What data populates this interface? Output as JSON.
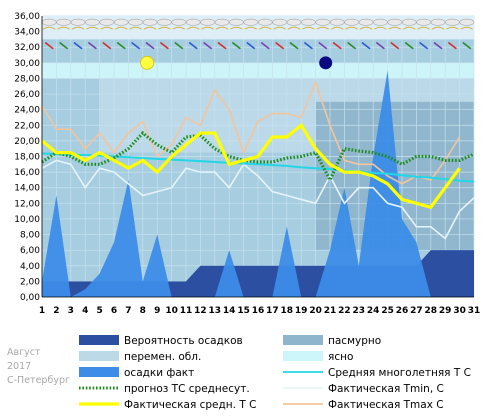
{
  "caption": {
    "month": "Август",
    "year": "2017",
    "city": "С-Петербург"
  },
  "colors": {
    "panel_bg": "#a6cde0",
    "clear": "#cdf6fa",
    "partly": "#bcd9e8",
    "overcast": "#8eb5cc",
    "precip_prob": "#2c4fa2",
    "precip_fact": "#3c8ce8",
    "forecast": "#1e8c1e",
    "norm": "#22d6e6",
    "tmin": "#e6f4fa",
    "tavg": "#ffff00",
    "tmax": "#f4c49c"
  },
  "legend": [
    {
      "key": "precip_prob",
      "label": "Вероятность осадков",
      "swatch": "box-dark"
    },
    {
      "key": "overcast",
      "label": "пасмурно",
      "swatch": "box-grey"
    },
    {
      "key": "partly",
      "label": "перемен. обл.",
      "swatch": "box-light"
    },
    {
      "key": "clear",
      "label": "ясно",
      "swatch": "box-clear"
    },
    {
      "key": "precip_fact",
      "label": "осадки факт",
      "swatch": "box-blue"
    },
    {
      "key": "norm",
      "label": "Средняя многолетняя Т С",
      "swatch": "line-cyan"
    },
    {
      "key": "forecast",
      "label": "прогноз ТС среднесут.",
      "swatch": "line-green-dotted"
    },
    {
      "key": "tmin",
      "label": "Фактическая Tmin, С",
      "swatch": "line-white"
    },
    {
      "key": "tavg",
      "label": "Фактическая средн. Т С",
      "swatch": "line-yellow"
    },
    {
      "key": "tmax",
      "label": "Фактическая Tmax С",
      "swatch": "line-peach"
    }
  ],
  "chart_data": {
    "type": "line",
    "x": [
      1,
      2,
      3,
      4,
      5,
      6,
      7,
      8,
      9,
      10,
      11,
      12,
      13,
      14,
      15,
      16,
      17,
      18,
      19,
      20,
      21,
      22,
      23,
      24,
      25,
      26,
      27,
      28,
      29,
      30,
      31
    ],
    "ylim": [
      0,
      36
    ],
    "yticks": [
      "0,00",
      "2,00",
      "4,00",
      "6,00",
      "8,00",
      "10,00",
      "12,00",
      "14,00",
      "16,00",
      "18,00",
      "20,00",
      "22,00",
      "24,00",
      "26,00",
      "28,00",
      "30,00",
      "32,00",
      "34,00",
      "36,00"
    ],
    "xticks": [
      "1",
      "2",
      "3",
      "4",
      "5",
      "6",
      "7",
      "8",
      "9",
      "10",
      "11",
      "12",
      "13",
      "14",
      "15",
      "16",
      "17",
      "18",
      "19",
      "20",
      "21",
      "22",
      "23",
      "24",
      "25",
      "26",
      "27",
      "28",
      "29",
      "30",
      "31"
    ],
    "grid": true,
    "series": [
      {
        "key": "norm",
        "name": "Средняя многолетняя Т С",
        "values": [
          18.4,
          18.3,
          18.2,
          18.2,
          18.1,
          18.0,
          17.9,
          17.8,
          17.7,
          17.6,
          17.5,
          17.4,
          17.3,
          17.2,
          17.1,
          17.0,
          16.9,
          16.8,
          16.6,
          16.5,
          16.4,
          16.2,
          16.1,
          15.9,
          15.8,
          15.6,
          15.4,
          15.3,
          15.1,
          14.9,
          14.8
        ]
      },
      {
        "key": "forecast",
        "name": "прогноз ТС среднесут.",
        "values": [
          17.3,
          18.5,
          18.0,
          17.0,
          17.0,
          17.8,
          19.0,
          21.0,
          19.5,
          18.5,
          20.5,
          20.7,
          19.0,
          18.0,
          17.5,
          17.3,
          17.3,
          17.8,
          18.0,
          18.5,
          15.0,
          19.0,
          18.7,
          18.5,
          18.0,
          17.0,
          18.0,
          18.0,
          17.5,
          17.5,
          18.3
        ]
      },
      {
        "key": "tmin",
        "name": "Фактическая Tmin, С",
        "values": [
          16.5,
          17.5,
          17.0,
          14.0,
          16.5,
          16.0,
          14.5,
          13.0,
          13.5,
          14.0,
          16.5,
          16.0,
          16.0,
          14.0,
          17.0,
          15.5,
          13.5,
          13.0,
          12.5,
          12.0,
          15.5,
          12.0,
          14.0,
          14.0,
          12.0,
          11.5,
          9.0,
          9.0,
          7.5,
          11.0,
          12.7
        ]
      },
      {
        "key": "tmax",
        "name": "Фактическая Tmax С",
        "values": [
          24.5,
          21.5,
          21.5,
          19.0,
          21.0,
          18.5,
          21.0,
          22.5,
          18.0,
          19.5,
          23.0,
          22.0,
          26.5,
          24.0,
          18.5,
          22.5,
          23.5,
          23.5,
          23.0,
          27.5,
          22.0,
          17.5,
          17.0,
          17.0,
          15.5,
          14.5,
          15.5,
          15.0,
          17.5,
          20.5,
          null
        ]
      },
      {
        "key": "tavg",
        "name": "Фактическая средн. Т С",
        "values": [
          20.0,
          18.5,
          18.5,
          17.5,
          18.5,
          17.5,
          16.5,
          17.5,
          16.0,
          18.0,
          19.5,
          21.0,
          21.0,
          17.0,
          17.5,
          18.0,
          20.5,
          20.5,
          22.0,
          19.0,
          17.0,
          16.0,
          16.0,
          15.5,
          14.5,
          12.5,
          12.0,
          11.5,
          14.0,
          16.5,
          null
        ]
      },
      {
        "key": "precip_fact",
        "name": "осадки факт",
        "values": [
          2,
          13,
          0,
          1,
          3,
          7,
          15,
          2,
          8,
          0,
          0,
          0,
          0,
          6,
          0,
          0,
          0,
          9,
          0,
          0,
          6,
          14,
          4,
          18,
          29,
          10,
          7,
          0,
          0,
          0,
          0
        ]
      },
      {
        "key": "precip_prob",
        "name": "Вероятность осадков",
        "values": [
          2,
          2,
          2,
          2,
          2,
          2,
          2,
          2,
          2,
          2,
          2,
          4,
          4,
          4,
          4,
          4,
          4,
          4,
          4,
          4,
          4,
          4,
          4,
          4,
          4,
          4,
          4,
          6,
          6,
          6,
          6
        ]
      }
    ],
    "cloud_bands": [
      {
        "kind": "clear",
        "x": [
          1,
          31
        ]
      },
      {
        "kind": "partly",
        "x": [
          5,
          31
        ]
      },
      {
        "kind": "overcast",
        "x": [
          20,
          31
        ]
      }
    ]
  }
}
